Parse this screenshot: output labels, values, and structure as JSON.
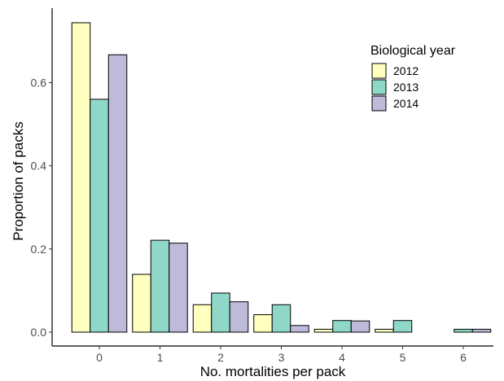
{
  "chart_data": {
    "type": "bar",
    "xlabel": "No. mortalities per pack",
    "ylabel": "Proportion of packs",
    "categories": [
      "0",
      "1",
      "2",
      "3",
      "4",
      "5",
      "6"
    ],
    "ylim": [
      0,
      0.76
    ],
    "yticks": [
      "0.0",
      "0.2",
      "0.4",
      "0.6"
    ],
    "grid": false,
    "legend": {
      "title": "Biological year",
      "position": "top-right"
    },
    "series": [
      {
        "name": "2012",
        "color": "#ffffbf",
        "values": [
          0.744,
          0.139,
          0.066,
          0.042,
          0.007,
          0.007,
          0.0
        ]
      },
      {
        "name": "2013",
        "color": "#8fd8c8",
        "values": [
          0.56,
          0.221,
          0.094,
          0.066,
          0.028,
          0.028,
          0.007
        ]
      },
      {
        "name": "2014",
        "color": "#bebad9",
        "values": [
          0.667,
          0.214,
          0.073,
          0.016,
          0.027,
          0.0,
          0.007
        ]
      }
    ]
  }
}
